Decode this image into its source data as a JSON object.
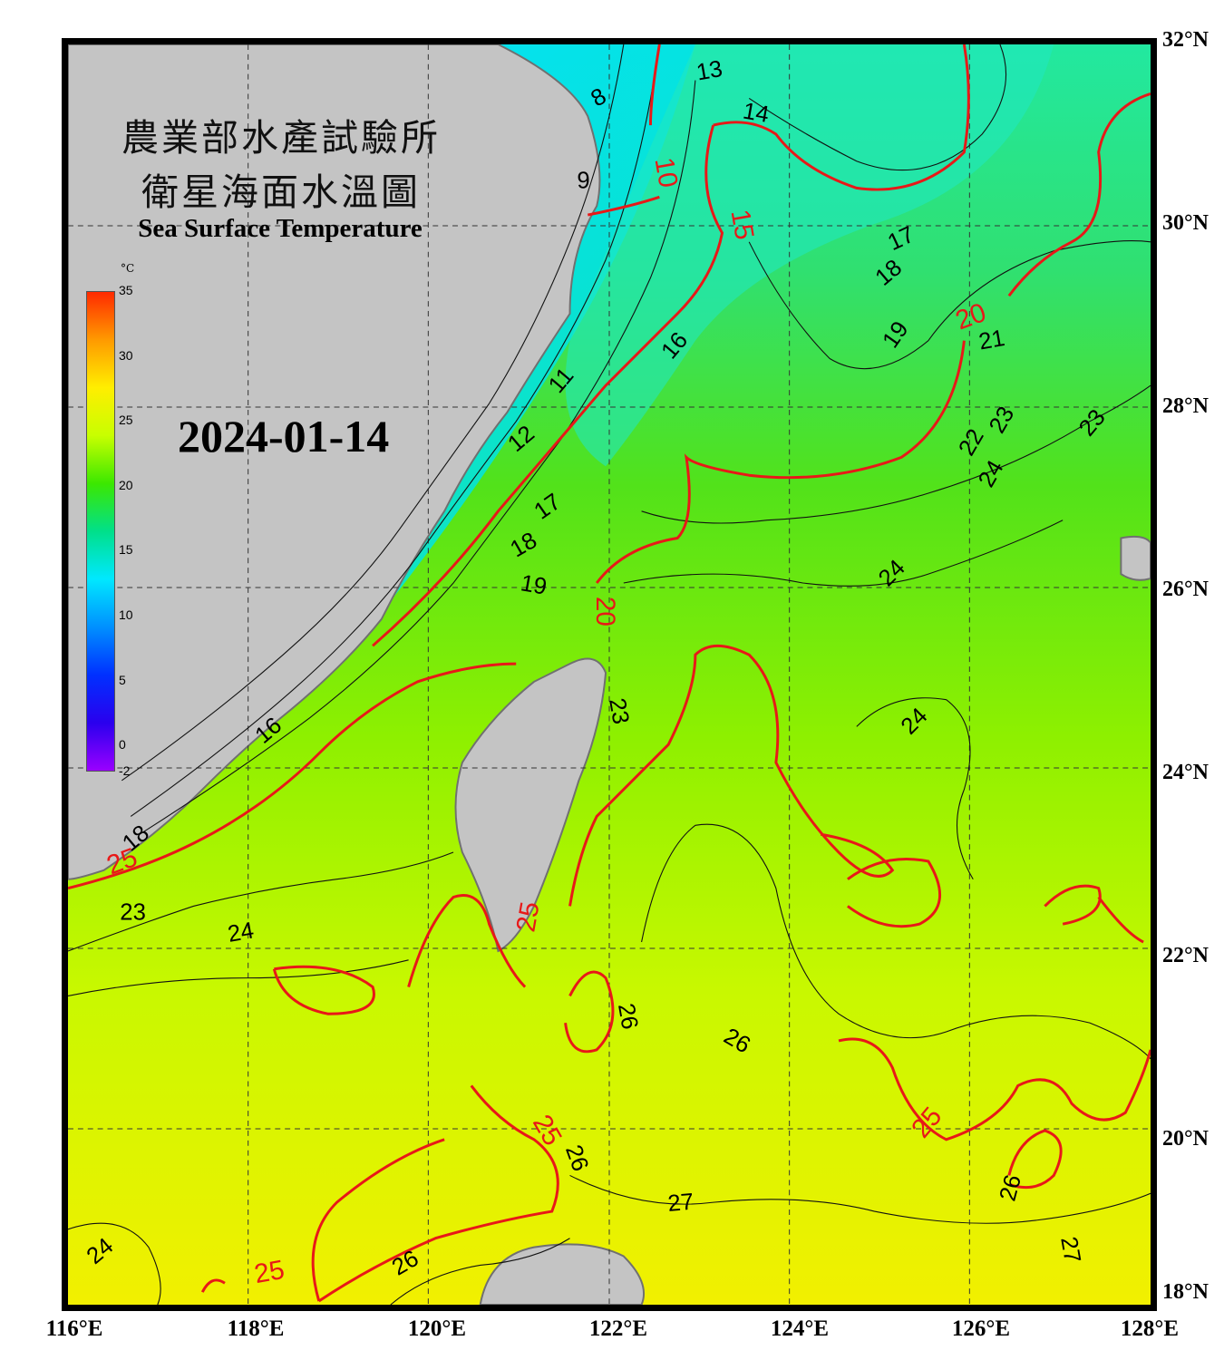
{
  "title": {
    "zh_line1": "農業部水產試驗所",
    "zh_line2": "衛星海面水溫圖",
    "en": "Sea Surface Temperature"
  },
  "date": "2024-01-14",
  "colorbar": {
    "unit": "°C",
    "min": -2,
    "max": 35,
    "ticks": [
      "35",
      "30",
      "25",
      "20",
      "15",
      "10",
      "5",
      "0",
      "-2"
    ],
    "tick_values": [
      35,
      30,
      25,
      20,
      15,
      10,
      5,
      0,
      -2
    ],
    "colors": [
      "#ff2a00",
      "#ff9a00",
      "#ffee00",
      "#c8ff00",
      "#3ce800",
      "#00e08a",
      "#00e8ff",
      "#0090ff",
      "#0030ff",
      "#2a00ee",
      "#9a00ff"
    ]
  },
  "axes": {
    "lat_labels": [
      "32°N",
      "30°N",
      "28°N",
      "26°N",
      "24°N",
      "22°N",
      "20°N",
      "18°N"
    ],
    "lon_labels": [
      "116°E",
      "118°E",
      "120°E",
      "122°E",
      "124°E",
      "126°E",
      "128°E"
    ]
  },
  "contour_labels": {
    "black": [
      "8",
      "9",
      "11",
      "12",
      "13",
      "14",
      "16",
      "17",
      "18",
      "19",
      "17",
      "18",
      "19",
      "21",
      "22",
      "23",
      "23",
      "24",
      "24",
      "24",
      "24",
      "16",
      "18",
      "23",
      "23",
      "24",
      "26",
      "26",
      "26",
      "26",
      "27",
      "27",
      "26"
    ],
    "red": [
      "10",
      "15",
      "20",
      "20",
      "25",
      "25",
      "25",
      "25",
      "25"
    ]
  }
}
